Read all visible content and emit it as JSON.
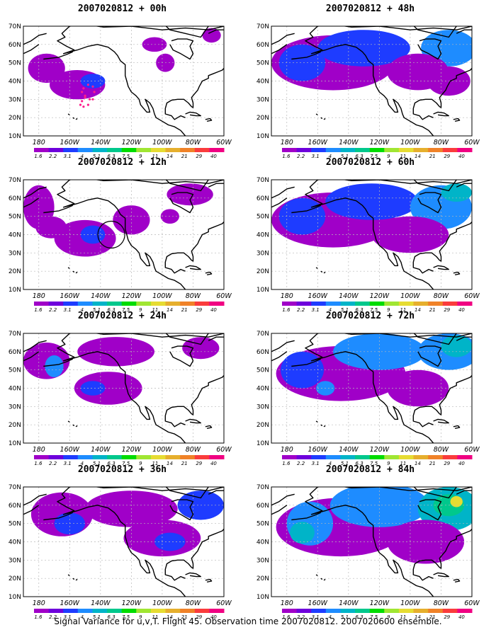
{
  "colorbar": {
    "labels": [
      "1.6",
      "2.2",
      "3.1",
      "4",
      "5.1",
      "6.3",
      "7.5",
      "9",
      "11",
      "14",
      "21",
      "29",
      "40"
    ],
    "colors": [
      "#a000c8",
      "#6e00dc",
      "#1e3cff",
      "#1e8cff",
      "#00b4c8",
      "#00c88c",
      "#00dc00",
      "#a0e632",
      "#e6dc32",
      "#e6af2d",
      "#f08228",
      "#fa3c3c",
      "#f00082"
    ]
  },
  "axes": {
    "lat_labels": [
      "10N",
      "20N",
      "30N",
      "40N",
      "50N",
      "60N",
      "70N"
    ],
    "lon_labels": [
      "180",
      "160W",
      "140W",
      "120W",
      "100W",
      "80W",
      "60W"
    ],
    "lat_range": [
      10,
      70
    ],
    "lon_range": [
      170,
      300
    ]
  },
  "panels": [
    {
      "title": "2007020812 + 00h",
      "lead_hours": 0,
      "col": 0,
      "row": 0
    },
    {
      "title": "2007020812 + 48h",
      "lead_hours": 48,
      "col": 1,
      "row": 0
    },
    {
      "title": "2007020812 + 12h",
      "lead_hours": 12,
      "col": 0,
      "row": 1
    },
    {
      "title": "2007020812 + 60h",
      "lead_hours": 60,
      "col": 1,
      "row": 1
    },
    {
      "title": "2007020812 + 24h",
      "lead_hours": 24,
      "col": 0,
      "row": 2
    },
    {
      "title": "2007020812 + 72h",
      "lead_hours": 72,
      "col": 1,
      "row": 2
    },
    {
      "title": "2007020812 + 36h",
      "lead_hours": 36,
      "col": 0,
      "row": 3
    },
    {
      "title": "2007020812 + 84h",
      "lead_hours": 84,
      "col": 1,
      "row": 3
    }
  ],
  "footer": "Signal Variance for u,v,T. Flight 45. Observation time 2007020812. 2007020600 ensemble."
}
